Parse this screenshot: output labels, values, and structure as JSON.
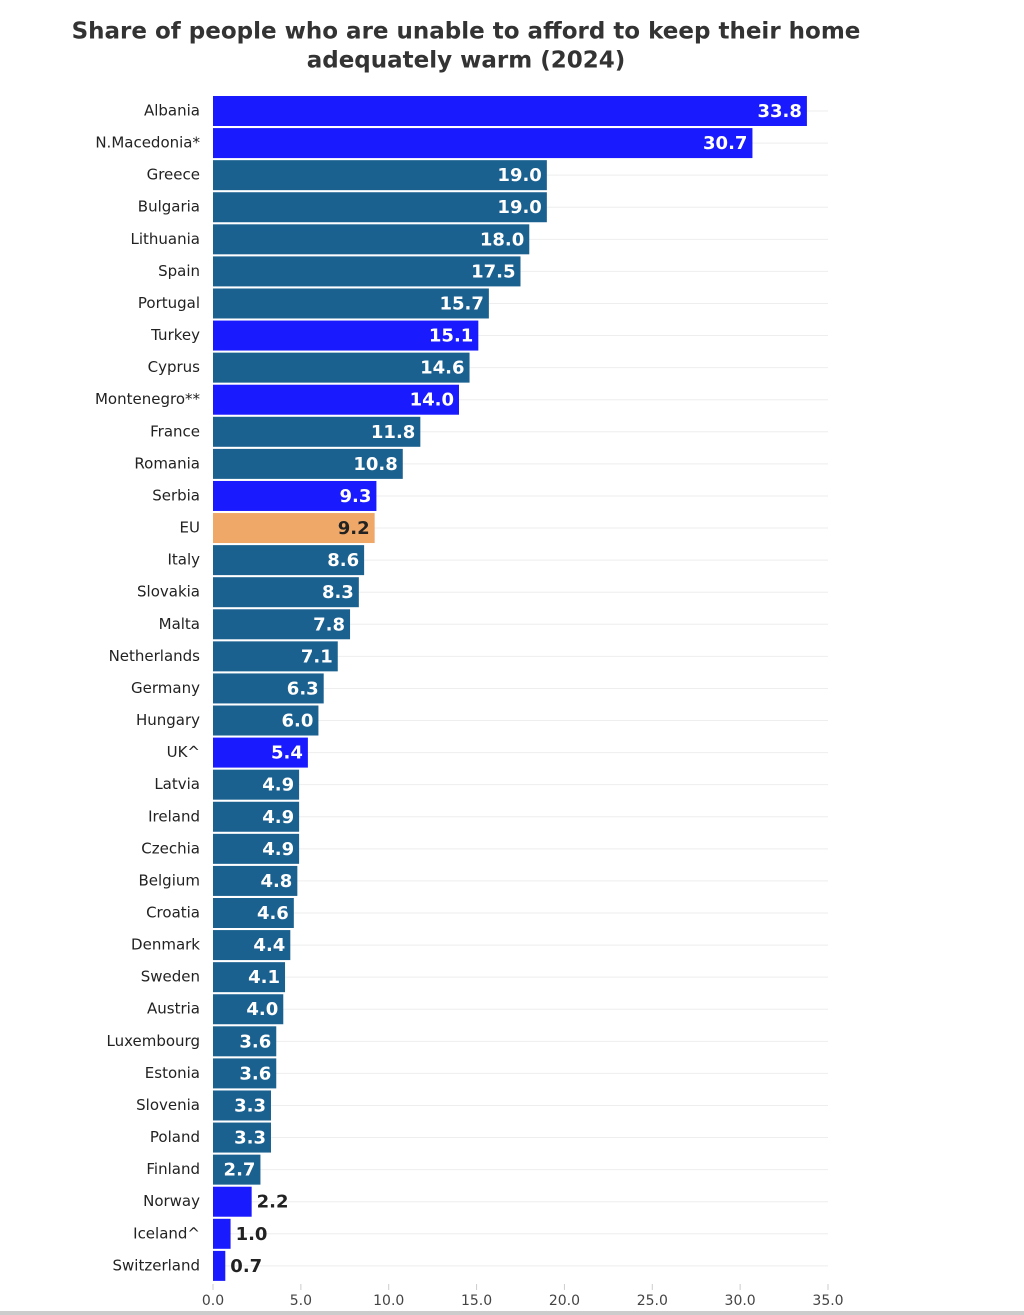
{
  "chart_data": {
    "type": "bar",
    "orientation": "horizontal",
    "title": "Share of people who are unable to afford to keep their home",
    "subtitle": "adequately warm (2024)",
    "categories": [
      "Albania",
      "N.Macedonia*",
      "Greece",
      "Bulgaria",
      "Lithuania",
      "Spain",
      "Portugal",
      "Turkey",
      "Cyprus",
      "Montenegro**",
      "France",
      "Romania",
      "Serbia",
      "EU",
      "Italy",
      "Slovakia",
      "Malta",
      "Netherlands",
      "Germany",
      "Hungary",
      "UK^",
      "Latvia",
      "Ireland",
      "Czechia",
      "Belgium",
      "Croatia",
      "Denmark",
      "Sweden",
      "Austria",
      "Luxembourg",
      "Estonia",
      "Slovenia",
      "Poland",
      "Finland",
      "Norway",
      "Iceland^",
      "Switzerland"
    ],
    "values": [
      33.8,
      30.7,
      19,
      19,
      18,
      17.5,
      15.7,
      15.1,
      14.6,
      14,
      11.8,
      10.8,
      9.3,
      9.2,
      8.6,
      8.3,
      7.8,
      7.1,
      6.3,
      6,
      5.4,
      4.9,
      4.9,
      4.9,
      4.8,
      4.6,
      4.4,
      4.1,
      4,
      3.6,
      3.6,
      3.3,
      3.3,
      2.7,
      2.2,
      1,
      0.7
    ],
    "value_labels": [
      "33.8",
      "30.7",
      "19.0",
      "19.0",
      "18.0",
      "17.5",
      "15.7",
      "15.1",
      "14.6",
      "14.0",
      "11.8",
      "10.8",
      "9.3",
      "9.2",
      "8.6",
      "8.3",
      "7.8",
      "7.1",
      "6.3",
      "6.0",
      "5.4",
      "4.9",
      "4.9",
      "4.9",
      "4.8",
      "4.6",
      "4.4",
      "4.1",
      "4.0",
      "3.6",
      "3.6",
      "3.3",
      "3.3",
      "2.7",
      "2.2",
      "1.0",
      "0.7"
    ],
    "colors": [
      "#1a1aff",
      "#1a1aff",
      "#1b6190",
      "#1b6190",
      "#1b6190",
      "#1b6190",
      "#1b6190",
      "#1a1aff",
      "#1b6190",
      "#1a1aff",
      "#1b6190",
      "#1b6190",
      "#1a1aff",
      "#f0a868",
      "#1b6190",
      "#1b6190",
      "#1b6190",
      "#1b6190",
      "#1b6190",
      "#1b6190",
      "#1a1aff",
      "#1b6190",
      "#1b6190",
      "#1b6190",
      "#1b6190",
      "#1b6190",
      "#1b6190",
      "#1b6190",
      "#1b6190",
      "#1b6190",
      "#1b6190",
      "#1b6190",
      "#1b6190",
      "#1b6190",
      "#1a1aff",
      "#1a1aff",
      "#1a1aff"
    ],
    "xlim": [
      0,
      35
    ],
    "xticks": [
      {
        "value": 0,
        "label": "0.0"
      },
      {
        "value": 5,
        "label": "5.0"
      },
      {
        "value": 10,
        "label": "10.0"
      },
      {
        "value": 15,
        "label": "15.0"
      },
      {
        "value": 20,
        "label": "20.0"
      },
      {
        "value": 25,
        "label": "25.0"
      },
      {
        "value": 30,
        "label": "30.0"
      },
      {
        "value": 35,
        "label": "35.0"
      }
    ]
  }
}
